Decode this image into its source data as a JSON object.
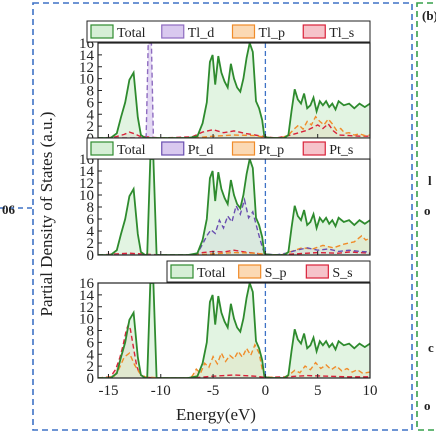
{
  "figure": {
    "ylabel": "Partial Density of States (a.u.)",
    "xlabel": "Energy(eV)",
    "next_panel_label": "(b)",
    "left_edge_label": "06",
    "right_edge_labels": [
      "l",
      "o",
      "c",
      "o"
    ]
  },
  "chart_data": [
    {
      "type": "area",
      "panel": "Tl",
      "legend": [
        "Total",
        "Tl_d",
        "Tl_p",
        "Tl_s"
      ],
      "xlim": [
        -16,
        10
      ],
      "ylim": [
        0,
        16
      ],
      "xticks": [
        -15,
        -10,
        -5,
        0,
        5,
        10
      ],
      "yticks": [
        0,
        2,
        4,
        6,
        8,
        10,
        12,
        14,
        16
      ],
      "fermi_level": 0,
      "series": [
        {
          "name": "Total",
          "color": "#2e8b2e",
          "fill": "#d6efd6",
          "x": [
            -16,
            -14.8,
            -14.2,
            -13.8,
            -13.4,
            -13,
            -12.6,
            -12.2,
            -11.9,
            -11.5,
            -11.3,
            -11.0,
            -10.7,
            -10.4,
            -10,
            -8,
            -7.4,
            -6.5,
            -6,
            -5.6,
            -5.3,
            -5.05,
            -4.8,
            -4.5,
            -4.2,
            -3.9,
            -3.6,
            -3.3,
            -3,
            -2.7,
            -2.4,
            -2.1,
            -1.8,
            -1.5,
            -1.2,
            -0.9,
            -0.6,
            -0.3,
            -0.1,
            0.1,
            0.6,
            1.2,
            1.8,
            2.2,
            2.5,
            2.8,
            3.1,
            3.4,
            3.7,
            4,
            4.3,
            4.6,
            4.9,
            5.2,
            5.5,
            5.8,
            6.1,
            6.4,
            6.7,
            7,
            7.5,
            8,
            8.5,
            9,
            9.5,
            10
          ],
          "y": [
            0,
            0,
            0.8,
            3.5,
            6,
            9.8,
            11,
            3.5,
            0.5,
            0,
            0,
            0,
            0,
            0,
            0,
            0,
            0,
            0.3,
            2.5,
            6,
            12.8,
            14,
            9,
            13.8,
            11,
            9.5,
            8.5,
            12.5,
            10,
            8.5,
            7.8,
            10,
            13.5,
            16,
            14.5,
            6.2,
            5,
            3,
            0.3,
            0.1,
            0,
            0,
            0,
            0.5,
            4.5,
            8.2,
            6.5,
            5.8,
            7.5,
            5,
            5.5,
            6.8,
            4.5,
            6.2,
            5.5,
            6.2,
            5.2,
            5.8,
            4.8,
            6.2,
            5.5,
            5.8,
            5,
            5.8,
            5.2,
            5.8
          ]
        },
        {
          "name": "Tl_d",
          "color": "#8e6cc0",
          "fill": "#d9c9ef",
          "x": [
            -16,
            -11.4,
            -11.3,
            -11.2,
            -10.9,
            -10.8,
            -10.7,
            -10
          ],
          "y": [
            0,
            0,
            8,
            16,
            16,
            8,
            0,
            0
          ]
        },
        {
          "name": "Tl_p",
          "color": "#f08c2a",
          "fill": "#fbd9b4",
          "x": [
            -16,
            -7,
            -5,
            -3,
            -1,
            0,
            1.5,
            2.2,
            2.8,
            3.2,
            3.6,
            4,
            4.4,
            4.8,
            5.2,
            5.6,
            6,
            6.4,
            6.8,
            7.2,
            7.6,
            8,
            8.5,
            9,
            9.5,
            10
          ],
          "y": [
            0,
            0,
            0.3,
            0.5,
            0.4,
            0.1,
            0,
            0.5,
            1.6,
            2.2,
            1.5,
            2.8,
            2.2,
            3.6,
            2.8,
            2.2,
            3.2,
            2.4,
            1.3,
            1.6,
            0.8,
            0.9,
            0.5,
            0.7,
            0.4,
            0.5
          ]
        },
        {
          "name": "Tl_s",
          "color": "#d9223a",
          "fill": "#f6c3ca",
          "x": [
            -16,
            -14.5,
            -13.5,
            -13,
            -12.5,
            -12,
            -10,
            -7,
            -6,
            -5,
            -4,
            -3,
            -2,
            -1,
            0,
            1,
            2,
            3,
            4,
            5,
            5.5,
            6,
            6.5,
            7,
            8,
            9,
            10
          ],
          "y": [
            0,
            0.1,
            0.6,
            1.0,
            0.7,
            0.3,
            0,
            0.2,
            1.0,
            1.4,
            0.9,
            1.2,
            0.8,
            0.5,
            0.2,
            0,
            0.3,
            0.8,
            1.3,
            2.2,
            1.6,
            2.4,
            1.2,
            0.5,
            0.4,
            0.3,
            0.3
          ]
        }
      ]
    },
    {
      "type": "area",
      "panel": "Pt",
      "legend": [
        "Total",
        "Pt_d",
        "Pt_p",
        "Pt_s"
      ],
      "xlim": [
        -16,
        10
      ],
      "ylim": [
        0,
        16
      ],
      "xticks": [
        -15,
        -10,
        -5,
        0,
        5,
        10
      ],
      "yticks": [
        0,
        2,
        4,
        6,
        8,
        10,
        12,
        14,
        16
      ],
      "fermi_level": 0,
      "series": [
        {
          "name": "Total",
          "color": "#2e8b2e",
          "fill": "#d6efd6",
          "x": [
            -16,
            -14.8,
            -14.2,
            -13.8,
            -13.4,
            -13,
            -12.6,
            -12.2,
            -11.9,
            -11.5,
            -11.3,
            -11.0,
            -10.7,
            -10.4,
            -10,
            -8,
            -7.4,
            -6.5,
            -6,
            -5.6,
            -5.3,
            -5.05,
            -4.8,
            -4.5,
            -4.2,
            -3.9,
            -3.6,
            -3.3,
            -3,
            -2.7,
            -2.4,
            -2.1,
            -1.8,
            -1.5,
            -1.2,
            -0.9,
            -0.6,
            -0.3,
            -0.1,
            0.1,
            0.6,
            1.2,
            1.8,
            2.2,
            2.5,
            2.8,
            3.1,
            3.4,
            3.7,
            4,
            4.3,
            4.6,
            4.9,
            5.2,
            5.5,
            5.8,
            6.1,
            6.4,
            6.7,
            7,
            7.5,
            8,
            8.5,
            9,
            9.5,
            10
          ],
          "y": [
            0,
            0,
            0.8,
            3.5,
            6,
            9.8,
            11,
            3.5,
            0.5,
            0,
            0,
            16,
            16,
            0,
            0,
            0,
            0,
            0.3,
            2.5,
            6,
            12.8,
            14,
            9,
            13.8,
            11,
            9.5,
            8.5,
            12.5,
            10,
            8.5,
            7.8,
            10,
            13.5,
            16,
            14.5,
            6.2,
            5,
            3,
            0.3,
            0.1,
            0,
            0,
            0,
            0.5,
            4.5,
            8.2,
            6.5,
            5.8,
            7.5,
            5,
            5.5,
            6.8,
            4.5,
            6.2,
            5.5,
            6.2,
            5.2,
            5.8,
            4.8,
            6.2,
            5.5,
            5.8,
            5,
            5.8,
            5.2,
            5.8
          ]
        },
        {
          "name": "Pt_d",
          "color": "#6a4fb0",
          "fill": "#d9c9ef",
          "x": [
            -16,
            -7,
            -6.5,
            -6,
            -5.6,
            -5.2,
            -4.8,
            -4.4,
            -4,
            -3.6,
            -3.2,
            -2.8,
            -2.4,
            -2,
            -1.6,
            -1.2,
            -0.8,
            -0.5,
            -0.2,
            0,
            1,
            2,
            3,
            4,
            5,
            6,
            7,
            8,
            9,
            10
          ],
          "y": [
            0,
            0,
            0.3,
            1.8,
            3.2,
            4.2,
            3.6,
            5.8,
            4.5,
            6.5,
            5.5,
            8.2,
            6.8,
            9.2,
            6.2,
            7.2,
            4.5,
            2.5,
            0.8,
            0.2,
            0,
            0.3,
            0.8,
            1.2,
            0.8,
            1.0,
            0.6,
            0.8,
            0.6,
            0.5
          ]
        },
        {
          "name": "Pt_p",
          "color": "#f08c2a",
          "fill": "#fbd9b4",
          "x": [
            -16,
            -7,
            -5,
            -3,
            -1,
            0,
            1.5,
            2.5,
            3.5,
            4.5,
            5.5,
            6.5,
            7.5,
            8.5,
            9.2,
            9.6,
            10
          ],
          "y": [
            0,
            0,
            0.2,
            0.4,
            0.3,
            0.1,
            0,
            0.6,
            1.2,
            1.0,
            1.6,
            1.2,
            1.8,
            2.2,
            3.2,
            2.5,
            2.8
          ]
        },
        {
          "name": "Pt_s",
          "color": "#d9223a",
          "fill": "#f6c3ca",
          "x": [
            -16,
            -15,
            -14,
            -13,
            -12,
            -10,
            -7,
            -6,
            -5,
            -4,
            -3,
            -2,
            -1,
            0,
            1,
            3,
            5,
            7,
            8,
            9,
            10
          ],
          "y": [
            0,
            0.1,
            0.2,
            0.3,
            0.2,
            0,
            0,
            0.4,
            0.6,
            0.5,
            0.8,
            0.5,
            0.3,
            0.1,
            0,
            0.2,
            0.4,
            0.3,
            0.5,
            0.4,
            0.3
          ]
        }
      ]
    },
    {
      "type": "area",
      "panel": "S",
      "legend": [
        "Total",
        "S_p",
        "S_s"
      ],
      "xlim": [
        -16,
        10
      ],
      "ylim": [
        0,
        16
      ],
      "xticks": [
        -15,
        -10,
        -5,
        0,
        5,
        10
      ],
      "yticks": [
        0,
        2,
        4,
        6,
        8,
        10,
        12,
        14,
        16
      ],
      "fermi_level": 0,
      "series": [
        {
          "name": "Total",
          "color": "#2e8b2e",
          "fill": "#d6efd6",
          "x": [
            -16,
            -14.8,
            -14.2,
            -13.8,
            -13.4,
            -13,
            -12.6,
            -12.2,
            -11.9,
            -11.5,
            -11.3,
            -11.0,
            -10.7,
            -10.4,
            -10,
            -8,
            -7.4,
            -6.5,
            -6,
            -5.6,
            -5.3,
            -5.05,
            -4.8,
            -4.5,
            -4.2,
            -3.9,
            -3.6,
            -3.3,
            -3,
            -2.7,
            -2.4,
            -2.1,
            -1.8,
            -1.5,
            -1.2,
            -0.9,
            -0.6,
            -0.3,
            -0.1,
            0.1,
            0.6,
            1.2,
            1.8,
            2.2,
            2.5,
            2.8,
            3.1,
            3.4,
            3.7,
            4,
            4.3,
            4.6,
            4.9,
            5.2,
            5.5,
            5.8,
            6.1,
            6.4,
            6.7,
            7,
            7.5,
            8,
            8.5,
            9,
            9.5,
            10
          ],
          "y": [
            0,
            0,
            0.8,
            3.5,
            6,
            9.8,
            11,
            3.5,
            0.5,
            0,
            0,
            16,
            16,
            0,
            0,
            0,
            0,
            0.3,
            2.5,
            6,
            12.8,
            14,
            9,
            13.8,
            11,
            9.5,
            8.5,
            12.5,
            10,
            8.5,
            7.8,
            10,
            13.5,
            16,
            14.5,
            6.2,
            5,
            3,
            0.3,
            0.1,
            0,
            0,
            0,
            0.5,
            4.5,
            8.2,
            6.5,
            5.8,
            7.5,
            5,
            5.5,
            6.8,
            4.5,
            6.2,
            5.5,
            6.2,
            5.2,
            5.8,
            4.8,
            6.2,
            5.5,
            5.8,
            5,
            5.8,
            5.2,
            5.8
          ]
        },
        {
          "name": "S_p",
          "color": "#f08c2a",
          "fill": "#fbd9b4",
          "x": [
            -16,
            -14.5,
            -14,
            -13.5,
            -13,
            -12.5,
            -12,
            -11.5,
            -10,
            -7.5,
            -7,
            -6.6,
            -6.2,
            -5.8,
            -5.4,
            -5,
            -4.6,
            -4.2,
            -3.8,
            -3.4,
            -3,
            -2.6,
            -2.2,
            -1.8,
            -1.4,
            -1,
            -0.6,
            -0.3,
            0,
            1.5,
            2.2,
            2.8,
            3.3,
            3.8,
            4.3,
            4.8,
            5.3,
            5.8,
            6.3,
            6.8,
            7.3,
            7.8,
            8.3,
            8.8,
            9.3,
            10
          ],
          "y": [
            0,
            0.2,
            1.5,
            3.5,
            4.2,
            2.2,
            0.8,
            0.2,
            0,
            0,
            0.3,
            1.5,
            0.8,
            2.5,
            1.8,
            3.6,
            2.4,
            4.2,
            2.8,
            3.8,
            3.2,
            4.5,
            3.5,
            5.0,
            3.8,
            5.6,
            4.2,
            1.5,
            0.2,
            0,
            0.4,
            1.3,
            0.9,
            2.0,
            1.4,
            2.6,
            1.6,
            2.2,
            1.4,
            2.0,
            1.2,
            1.6,
            1.0,
            1.4,
            0.8,
            1.0
          ]
        },
        {
          "name": "S_s",
          "color": "#d9223a",
          "fill": "#f6c3ca",
          "x": [
            -16,
            -14.8,
            -14.3,
            -13.9,
            -13.6,
            -13.3,
            -13.1,
            -12.9,
            -12.6,
            -12.3,
            -12,
            -11.5,
            -10,
            -7,
            -5,
            -3,
            -1,
            0,
            2,
            4,
            6,
            8,
            10
          ],
          "y": [
            0,
            0.2,
            1.5,
            3.5,
            5.5,
            8.0,
            9.0,
            8.2,
            5.0,
            2.0,
            0.6,
            0.1,
            0,
            0,
            0.3,
            0.5,
            0.3,
            0.1,
            0.2,
            0.4,
            0.3,
            0.2,
            0.2
          ]
        }
      ]
    }
  ]
}
